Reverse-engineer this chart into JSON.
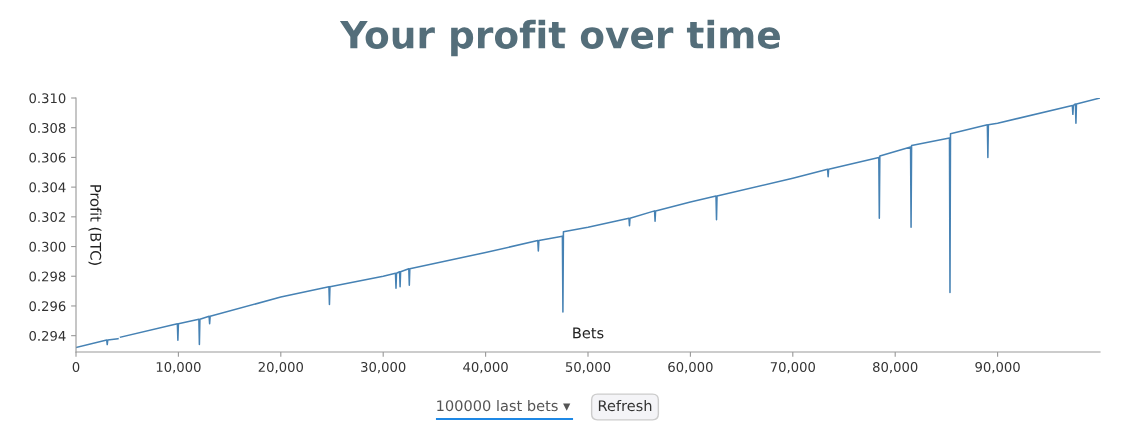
{
  "chart_data": {
    "type": "line",
    "title": "Your profit over time",
    "xlabel": "Bets",
    "ylabel": "Profit (BTC)",
    "annotations": [
      "100000 last bets ▾",
      "Refresh"
    ],
    "x": [
      0,
      3000,
      3050,
      3100,
      4100,
      4150,
      4250,
      4300,
      4350,
      9900,
      9950,
      10000,
      12000,
      12050,
      12100,
      13000,
      13050,
      13100,
      20000,
      24700,
      24750,
      24800,
      30000,
      31200,
      31250,
      31300,
      31600,
      31650,
      31700,
      32500,
      32550,
      32600,
      40000,
      45100,
      45150,
      45200,
      47500,
      47550,
      47600,
      50000,
      54000,
      54050,
      54100,
      56500,
      56550,
      56600,
      60000,
      62500,
      62550,
      62600,
      70000,
      73400,
      73450,
      73500,
      78400,
      78450,
      78500,
      80000,
      81500,
      81550,
      81600,
      85300,
      85350,
      85400,
      89000,
      89050,
      89100,
      90000,
      97300,
      97350,
      97400,
      97600,
      97650,
      97700,
      100000
    ],
    "series": [
      {
        "color": "#4682b4",
        "values": [
          0.2932,
          0.2937,
          0.2934,
          0.2937,
          0.2938,
          null,
          0.2938,
          null,
          0.2939,
          0.2948,
          0.2937,
          0.2948,
          0.2951,
          0.2934,
          0.2951,
          0.2953,
          0.2948,
          0.2953,
          0.2966,
          0.2973,
          0.2961,
          0.2973,
          0.298,
          0.2982,
          0.2972,
          0.2982,
          0.2983,
          0.2973,
          0.2983,
          0.2985,
          0.2974,
          0.2985,
          0.2996,
          0.3004,
          0.2997,
          0.3004,
          0.3007,
          0.2956,
          0.301,
          0.3013,
          0.3019,
          0.3014,
          0.3019,
          0.3024,
          0.3017,
          0.3024,
          0.303,
          0.3034,
          0.3018,
          0.3034,
          0.3046,
          0.3052,
          0.3047,
          0.3052,
          0.306,
          0.3019,
          0.3061,
          0.3064,
          0.3067,
          0.3013,
          0.3068,
          0.3073,
          0.2969,
          0.3076,
          0.3082,
          0.306,
          0.3082,
          0.3083,
          0.3095,
          0.3089,
          0.3095,
          0.3096,
          0.3083,
          0.3096,
          0.31
        ]
      }
    ],
    "xlim": [
      0,
      100000
    ],
    "xticks": [
      0,
      {
        "value": 10000,
        "label": "10,000"
      },
      {
        "value": 20000,
        "label": "20,000"
      },
      {
        "value": 30000,
        "label": "30,000"
      },
      {
        "value": 40000,
        "label": "40,000"
      },
      {
        "value": 50000,
        "label": "50,000"
      },
      {
        "value": 60000,
        "label": "60,000"
      },
      {
        "value": 70000,
        "label": "70,000"
      },
      {
        "value": 80000,
        "label": "80,000"
      },
      {
        "value": 90000,
        "label": "90,000"
      }
    ],
    "ylim": [
      0.2929,
      0.31
    ],
    "yticks": [
      0.294,
      0.296,
      0.298,
      {
        "value": 0.3,
        "label": "0.300"
      },
      0.302,
      0.304,
      0.306,
      0.308,
      {
        "value": 0.31,
        "label": "0.310"
      }
    ],
    "grid": false,
    "legend": false,
    "marker": "none",
    "line_style": "solid"
  }
}
